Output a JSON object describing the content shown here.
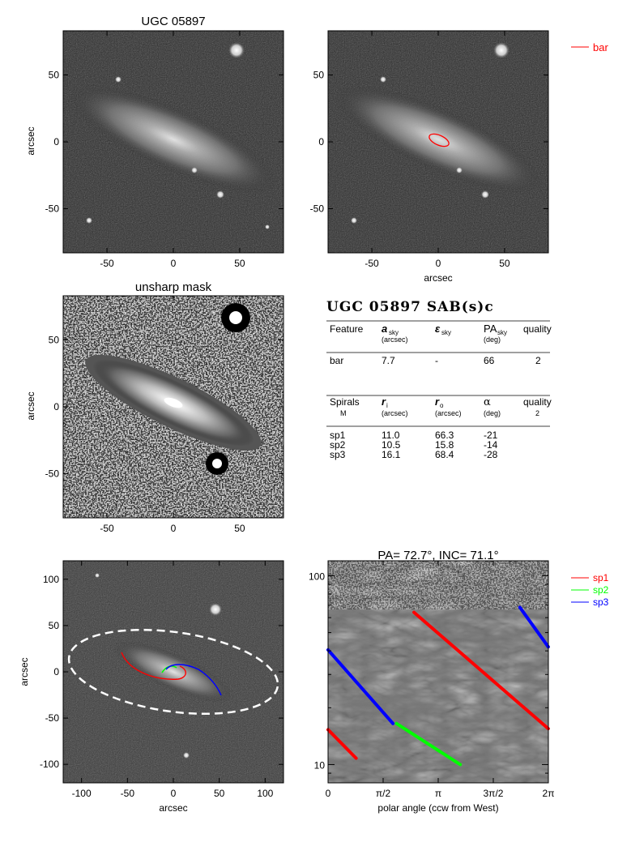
{
  "panel1": {
    "title": "UGC 05897",
    "ylabel": "arcsec",
    "xticks": [
      "-50",
      "0",
      "50"
    ],
    "yticks": [
      "50",
      "0",
      "-50"
    ]
  },
  "panel2": {
    "xlabel": "arcsec",
    "xticks": [
      "-50",
      "0",
      "50"
    ],
    "yticks": [
      "50",
      "0",
      "-50"
    ],
    "legend": [
      {
        "label": "bar",
        "color": "#ff0000"
      }
    ]
  },
  "panel3": {
    "title": "unsharp mask",
    "ylabel": "arcsec",
    "xticks": [
      "-50",
      "0",
      "50"
    ],
    "yticks": [
      "50",
      "0",
      "-50"
    ]
  },
  "table": {
    "title": "UGC 05897  SAB(s)c",
    "bars_header": {
      "c1": "Feature",
      "c2": "a",
      "c2sub": "sky",
      "c2unit": "(arcsec)",
      "c3": "ε",
      "c3sub": "sky",
      "c4": "PA",
      "c4sub": "sky",
      "c4unit": "(deg)",
      "c5": "quality"
    },
    "bars_rows": [
      {
        "feature": "bar",
        "a": "7.7",
        "eps": "-",
        "pa": "66",
        "quality": "2"
      }
    ],
    "spirals_header": {
      "c1": "Spirals",
      "c1sub": "M",
      "c2": "r",
      "c2sub": "i",
      "c2unit": "(arcsec)",
      "c3": "r",
      "c3sub": "o",
      "c3unit": "(arcsec)",
      "c4": "α",
      "c4unit": "(deg)",
      "c5": "quality",
      "c5sub": "2"
    },
    "spirals_rows": [
      {
        "name": "sp1",
        "ri": "11.0",
        "ro": "66.3",
        "alpha": "-21"
      },
      {
        "name": "sp2",
        "ri": "10.5",
        "ro": "15.8",
        "alpha": "-14"
      },
      {
        "name": "sp3",
        "ri": "16.1",
        "ro": "68.4",
        "alpha": "-28"
      }
    ]
  },
  "panel5": {
    "xlabel": "arcsec",
    "ylabel": "arcsec",
    "xticks": [
      "-100",
      "-50",
      "0",
      "50",
      "100"
    ],
    "yticks": [
      "100",
      "50",
      "0",
      "-50",
      "-100"
    ]
  },
  "panel6": {
    "title": "PA=  72.7°, INC=  71.1°",
    "xlabel": "polar angle (ccw from West)",
    "xticks": [
      "0",
      "π/2",
      "π",
      "3π/2",
      "2π"
    ],
    "yticks": [
      "100",
      "10"
    ],
    "legend": [
      {
        "label": "sp1",
        "color": "#ff0000"
      },
      {
        "label": "sp2",
        "color": "#00ff00"
      },
      {
        "label": "sp3",
        "color": "#0000ff"
      }
    ]
  },
  "chart_data": {
    "type": "line",
    "title": "PA=  72.7°, INC=  71.1°",
    "xlabel": "polar angle (ccw from West)",
    "xlim": [
      0,
      6.2832
    ],
    "ylim": [
      8,
      120
    ],
    "yscale": "log",
    "series": [
      {
        "name": "sp1",
        "x": [
          0.0,
          0.8,
          2.45,
          6.28
        ],
        "y": [
          15.3,
          10.8,
          64.0,
          15.5
        ]
      },
      {
        "name": "sp2",
        "x": [
          1.95,
          3.77
        ],
        "y": [
          16.5,
          10.0
        ]
      },
      {
        "name": "sp3",
        "x": [
          0.0,
          1.85,
          5.47,
          6.28
        ],
        "y": [
          40.5,
          16.5,
          68.0,
          42.0
        ]
      }
    ]
  }
}
